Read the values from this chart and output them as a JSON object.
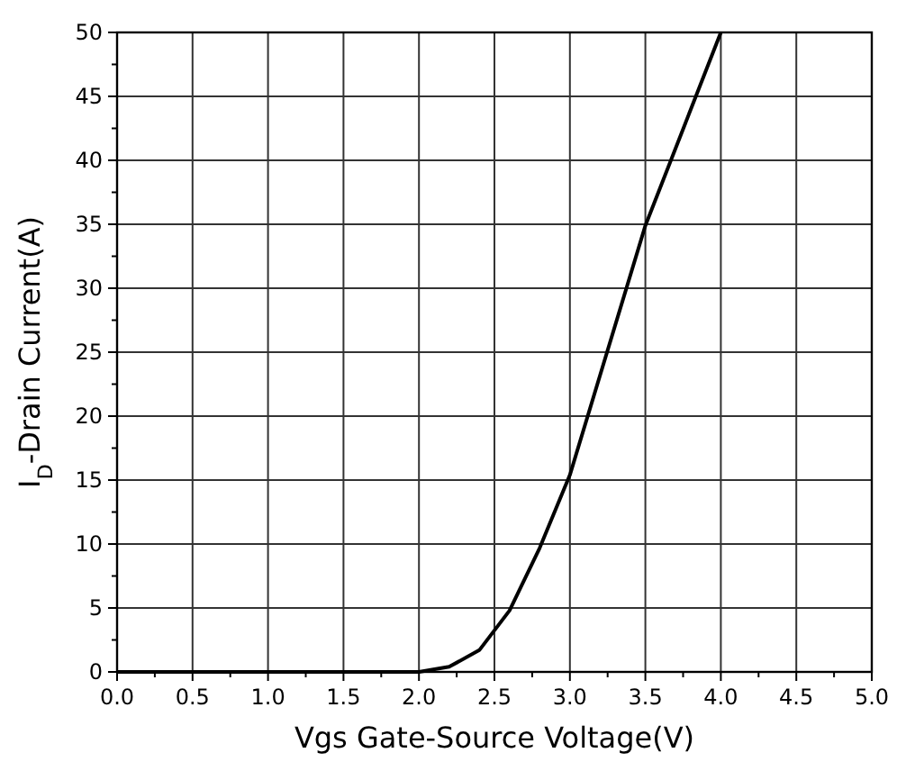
{
  "chart_data": {
    "type": "line",
    "xlabel": "Vgs Gate-Source Voltage(V)",
    "ylabel": "I$_{D}$-Drain Current(A)",
    "xlim": [
      0,
      5
    ],
    "ylim": [
      0,
      50
    ],
    "xticks": [
      {
        "value": 0,
        "label": "0.0"
      },
      0.5,
      {
        "value": 1,
        "label": "1.0"
      },
      1.5,
      {
        "value": 2,
        "label": "2.0"
      },
      2.5,
      {
        "value": 3,
        "label": "3.0"
      },
      3.5,
      {
        "value": 4,
        "label": "4.0"
      },
      4.5,
      {
        "value": 5,
        "label": "5.0"
      }
    ],
    "yticks": [
      0,
      5,
      10,
      15,
      20,
      25,
      30,
      35,
      40,
      45,
      50
    ],
    "grid": true,
    "marker": "none",
    "line_style": "solid",
    "series": [
      {
        "color": "#000000",
        "x": [
          0,
          0.5,
          1.0,
          1.5,
          2.0,
          2.2,
          2.4,
          2.6,
          2.8,
          3.0,
          3.5,
          4.0
        ],
        "values": [
          0,
          0,
          0,
          0,
          0,
          0.4,
          1.7,
          4.8,
          9.7,
          15.4,
          34.9,
          50
        ]
      }
    ]
  }
}
